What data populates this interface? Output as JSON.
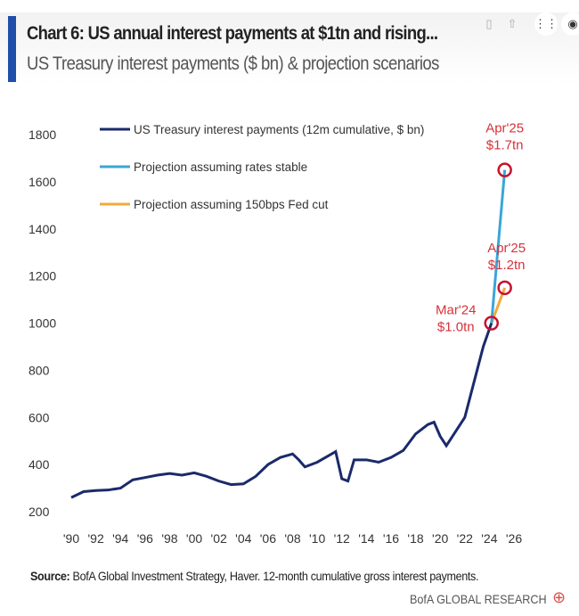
{
  "header": {
    "title": "Chart 6: US annual interest payments at $1tn and rising...",
    "subtitle": "US Treasury interest payments ($ bn) & projection scenarios"
  },
  "footer": {
    "source_label": "Source:",
    "source_text": " BofA Global Investment Strategy, Haver. 12-month cumulative gross interest payments.",
    "brand": "BofA GLOBAL RESEARCH"
  },
  "chart_data": {
    "type": "line",
    "title": "Chart 6: US annual interest payments at $1tn and rising...",
    "subtitle": "US Treasury interest payments ($ bn) & projection scenarios",
    "xlabel": "",
    "ylabel": "",
    "xlim": [
      1990,
      2026
    ],
    "ylim": [
      200,
      1800
    ],
    "x_ticks": [
      "'90",
      "'92",
      "'94",
      "'96",
      "'98",
      "'00",
      "'02",
      "'04",
      "'06",
      "'08",
      "'10",
      "'12",
      "'14",
      "'16",
      "'18",
      "'20",
      "'22",
      "'24",
      "'26"
    ],
    "y_ticks": [
      200,
      400,
      600,
      800,
      1000,
      1200,
      1400,
      1600,
      1800
    ],
    "legend_position": "top-left",
    "series": [
      {
        "name": "US Treasury interest payments (12m cumulative, $ bn)",
        "color": "#1a2a6c",
        "x": [
          1990,
          1991,
          1992,
          1993,
          1994,
          1995,
          1996,
          1997,
          1998,
          1999,
          2000,
          2001,
          2002,
          2003,
          2004,
          2005,
          2006,
          2007,
          2008,
          2008.5,
          2009,
          2010,
          2011,
          2011.5,
          2012,
          2012.5,
          2013,
          2014,
          2015,
          2016,
          2017,
          2018,
          2019,
          2019.5,
          2020,
          2020.5,
          2021,
          2022,
          2022.5,
          2023,
          2023.5,
          2024.17
        ],
        "y": [
          260,
          285,
          290,
          292,
          300,
          335,
          345,
          355,
          362,
          355,
          365,
          350,
          330,
          315,
          318,
          350,
          400,
          430,
          445,
          420,
          390,
          410,
          440,
          455,
          340,
          330,
          420,
          420,
          410,
          430,
          460,
          530,
          570,
          580,
          520,
          480,
          520,
          600,
          700,
          800,
          900,
          1000
        ]
      },
      {
        "name": "Projection assuming rates stable",
        "color": "#3aa6d8",
        "x": [
          2024.17,
          2025.25
        ],
        "y": [
          1000,
          1650
        ]
      },
      {
        "name": "Projection assuming 150bps Fed cut",
        "color": "#f2a93b",
        "x": [
          2024.17,
          2025.25
        ],
        "y": [
          1000,
          1150
        ]
      }
    ],
    "annotations": [
      {
        "text": [
          "Apr'25",
          "$1.7tn"
        ],
        "x": 2025.25,
        "y": 1650
      },
      {
        "text": [
          "Apr'25",
          "$1.2tn"
        ],
        "x": 2025.25,
        "y": 1150
      },
      {
        "text": [
          "Mar'24",
          "$1.0tn"
        ],
        "x": 2024.17,
        "y": 1000
      }
    ]
  }
}
